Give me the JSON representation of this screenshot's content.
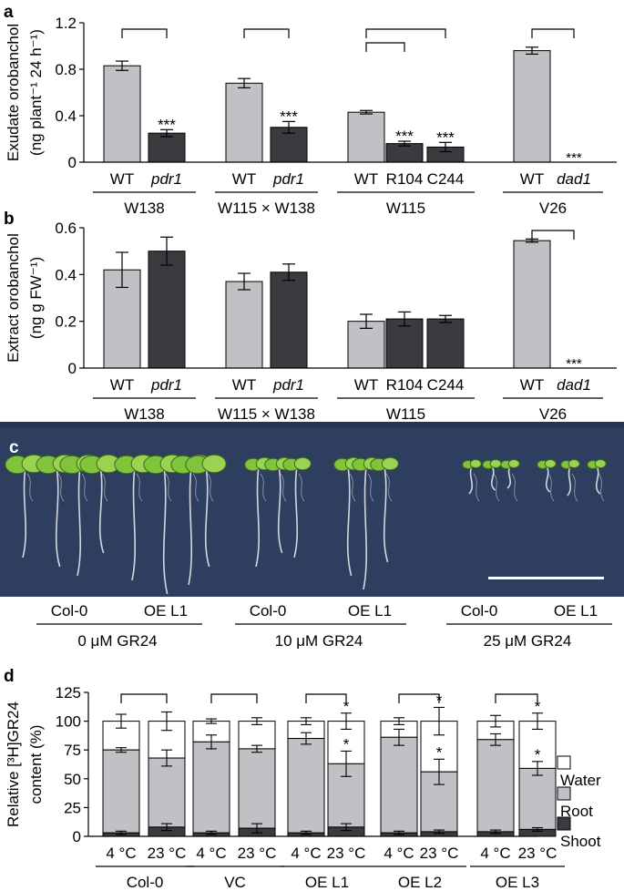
{
  "chart_data": [
    {
      "panel": "a",
      "type": "bar",
      "ylabel_line1": "Exudate orobanchol",
      "ylabel_line2": "(ng plant⁻¹ 24 h⁻¹)",
      "ylim": [
        0,
        1.2
      ],
      "yticks": [
        "0",
        "0.4",
        "0.8",
        "1.2"
      ],
      "groups": [
        {
          "name": "W138",
          "bars": [
            {
              "label": "WT",
              "value": 0.83,
              "err": 0.04,
              "color": "light"
            },
            {
              "label": "pdr1",
              "value": 0.25,
              "err": 0.03,
              "color": "dark",
              "italic": true,
              "sig": "***"
            }
          ]
        },
        {
          "name": "W115 × W138",
          "bars": [
            {
              "label": "WT",
              "value": 0.68,
              "err": 0.04,
              "color": "light"
            },
            {
              "label": "pdr1",
              "value": 0.3,
              "err": 0.05,
              "color": "dark",
              "italic": true,
              "sig": "***"
            }
          ]
        },
        {
          "name": "W115",
          "bars": [
            {
              "label": "WT",
              "value": 0.43,
              "err": 0.015,
              "color": "light"
            },
            {
              "label": "R104",
              "value": 0.16,
              "err": 0.02,
              "color": "dark",
              "sig": "***"
            },
            {
              "label": "C244",
              "value": 0.13,
              "err": 0.04,
              "color": "dark",
              "sig": "***"
            }
          ]
        },
        {
          "name": "V26",
          "bars": [
            {
              "label": "WT",
              "value": 0.96,
              "err": 0.03,
              "color": "light"
            },
            {
              "label": "dad1",
              "value": 0,
              "err": 0,
              "color": "dark",
              "italic": true,
              "sig": "***"
            }
          ]
        }
      ]
    },
    {
      "panel": "b",
      "type": "bar",
      "ylabel_line1": "Extract orobanchol",
      "ylabel_line2": "(ng g FW⁻¹)",
      "ylim": [
        0,
        0.6
      ],
      "yticks": [
        "0",
        "0.2",
        "0.4",
        "0.6"
      ],
      "groups": [
        {
          "name": "W138",
          "bars": [
            {
              "label": "WT",
              "value": 0.42,
              "err": 0.075,
              "color": "light"
            },
            {
              "label": "pdr1",
              "value": 0.5,
              "err": 0.06,
              "color": "dark",
              "italic": true
            }
          ]
        },
        {
          "name": "W115 × W138",
          "bars": [
            {
              "label": "WT",
              "value": 0.37,
              "err": 0.035,
              "color": "light"
            },
            {
              "label": "pdr1",
              "value": 0.41,
              "err": 0.035,
              "color": "dark",
              "italic": true
            }
          ]
        },
        {
          "name": "W115",
          "bars": [
            {
              "label": "WT",
              "value": 0.2,
              "err": 0.03,
              "color": "light"
            },
            {
              "label": "R104",
              "value": 0.21,
              "err": 0.03,
              "color": "dark"
            },
            {
              "label": "C244",
              "value": 0.21,
              "err": 0.015,
              "color": "dark"
            }
          ]
        },
        {
          "name": "V26",
          "bars": [
            {
              "label": "WT",
              "value": 0.545,
              "err": 0.007,
              "color": "light"
            },
            {
              "label": "dad1",
              "value": 0,
              "err": 0,
              "color": "dark",
              "italic": true,
              "sig": "***"
            }
          ]
        }
      ]
    },
    {
      "panel": "d",
      "type": "bar",
      "ylabel_line1": "Relative [³H]GR24",
      "ylabel_line2": "content (%)",
      "ylim": [
        0,
        125
      ],
      "yticks": [
        "0",
        "25",
        "50",
        "75",
        "100",
        "125"
      ],
      "legend": [
        "Water",
        "Root",
        "Shoot"
      ],
      "groups": [
        {
          "name": "Col-0",
          "bars": [
            {
              "label": "4 °C",
              "shoot": 3,
              "root": 75,
              "total": 100,
              "shoot_err": 1.5,
              "root_err": 2,
              "total_err": 6
            },
            {
              "label": "23 °C",
              "shoot": 8,
              "root": 68,
              "total": 100,
              "shoot_err": 3,
              "root_err": 7,
              "total_err": 8
            }
          ]
        },
        {
          "name": "VC",
          "bars": [
            {
              "label": "4 °C",
              "shoot": 3,
              "root": 82,
              "total": 100,
              "shoot_err": 1.5,
              "root_err": 6,
              "total_err": 2
            },
            {
              "label": "23 °C",
              "shoot": 7,
              "root": 76,
              "total": 100,
              "shoot_err": 4,
              "root_err": 3,
              "total_err": 3
            }
          ]
        },
        {
          "name": "OE L1",
          "bars": [
            {
              "label": "4 °C",
              "shoot": 3,
              "root": 85,
              "total": 100,
              "shoot_err": 1.5,
              "root_err": 5,
              "total_err": 3
            },
            {
              "label": "23 °C",
              "shoot": 8,
              "root": 63,
              "total": 100,
              "shoot_err": 3,
              "root_err": 11,
              "total_err": 7,
              "sig_root": "*",
              "sig_total": "*"
            }
          ]
        },
        {
          "name": "OE L2",
          "bars": [
            {
              "label": "4 °C",
              "shoot": 3,
              "root": 86,
              "total": 100,
              "shoot_err": 1.5,
              "root_err": 7,
              "total_err": 3
            },
            {
              "label": "23 °C",
              "shoot": 4,
              "root": 56,
              "total": 100,
              "shoot_err": 1.5,
              "root_err": 11,
              "total_err": 12,
              "sig_root": "*",
              "sig_total": "*"
            }
          ]
        },
        {
          "name": "OE L3",
          "bars": [
            {
              "label": "4 °C",
              "shoot": 4,
              "root": 84,
              "total": 100,
              "shoot_err": 1.5,
              "root_err": 5,
              "total_err": 5
            },
            {
              "label": "23 °C",
              "shoot": 6,
              "root": 59,
              "total": 100,
              "shoot_err": 1.5,
              "root_err": 6,
              "total_err": 7,
              "sig_root": "*",
              "sig_total": "*"
            }
          ]
        }
      ]
    }
  ],
  "panel_c": {
    "panel": "c",
    "genotype_left": "Col-0",
    "genotype_right": "OE L1",
    "treatments": [
      "0 μM GR24",
      "10 μM GR24",
      "25 μM GR24"
    ]
  },
  "colors": {
    "light": "#bfc1c4",
    "dark": "#3a3b3e",
    "photo_background": "#2e3e5e",
    "leaf": "#7fc43a",
    "root": "#e6e8ec",
    "scale_bar": "#ffffff"
  }
}
